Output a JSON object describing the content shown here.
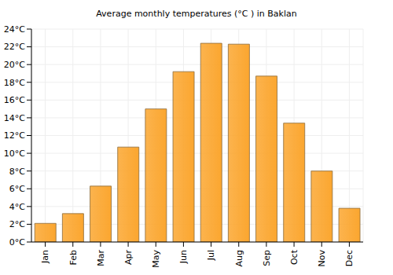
{
  "chart_data": {
    "type": "bar",
    "title": "Average monthly temperatures (°C ) in Baklan",
    "categories": [
      "Jan",
      "Feb",
      "Mar",
      "Apr",
      "May",
      "Jun",
      "Jul",
      "Aug",
      "Sep",
      "Oct",
      "Nov",
      "Dec"
    ],
    "values": [
      2.1,
      3.2,
      6.3,
      10.7,
      15.0,
      19.2,
      22.4,
      22.3,
      18.7,
      13.4,
      8.0,
      3.8
    ],
    "color": "#fba62f",
    "ylim": [
      0,
      24
    ],
    "yticks": [
      {
        "value": 0,
        "label": "0°C"
      },
      {
        "value": 2,
        "label": "2°C"
      },
      {
        "value": 4,
        "label": "4°C"
      },
      {
        "value": 6,
        "label": "6°C"
      },
      {
        "value": 8,
        "label": "8°C"
      },
      {
        "value": 10,
        "label": "10°C"
      },
      {
        "value": 12,
        "label": "12°C"
      },
      {
        "value": 14,
        "label": "14°C"
      },
      {
        "value": 16,
        "label": "16°C"
      },
      {
        "value": 18,
        "label": "18°C"
      },
      {
        "value": 20,
        "label": "20°C"
      },
      {
        "value": 22,
        "label": "22°C"
      },
      {
        "value": 24,
        "label": "24°C"
      }
    ],
    "grid": true
  }
}
